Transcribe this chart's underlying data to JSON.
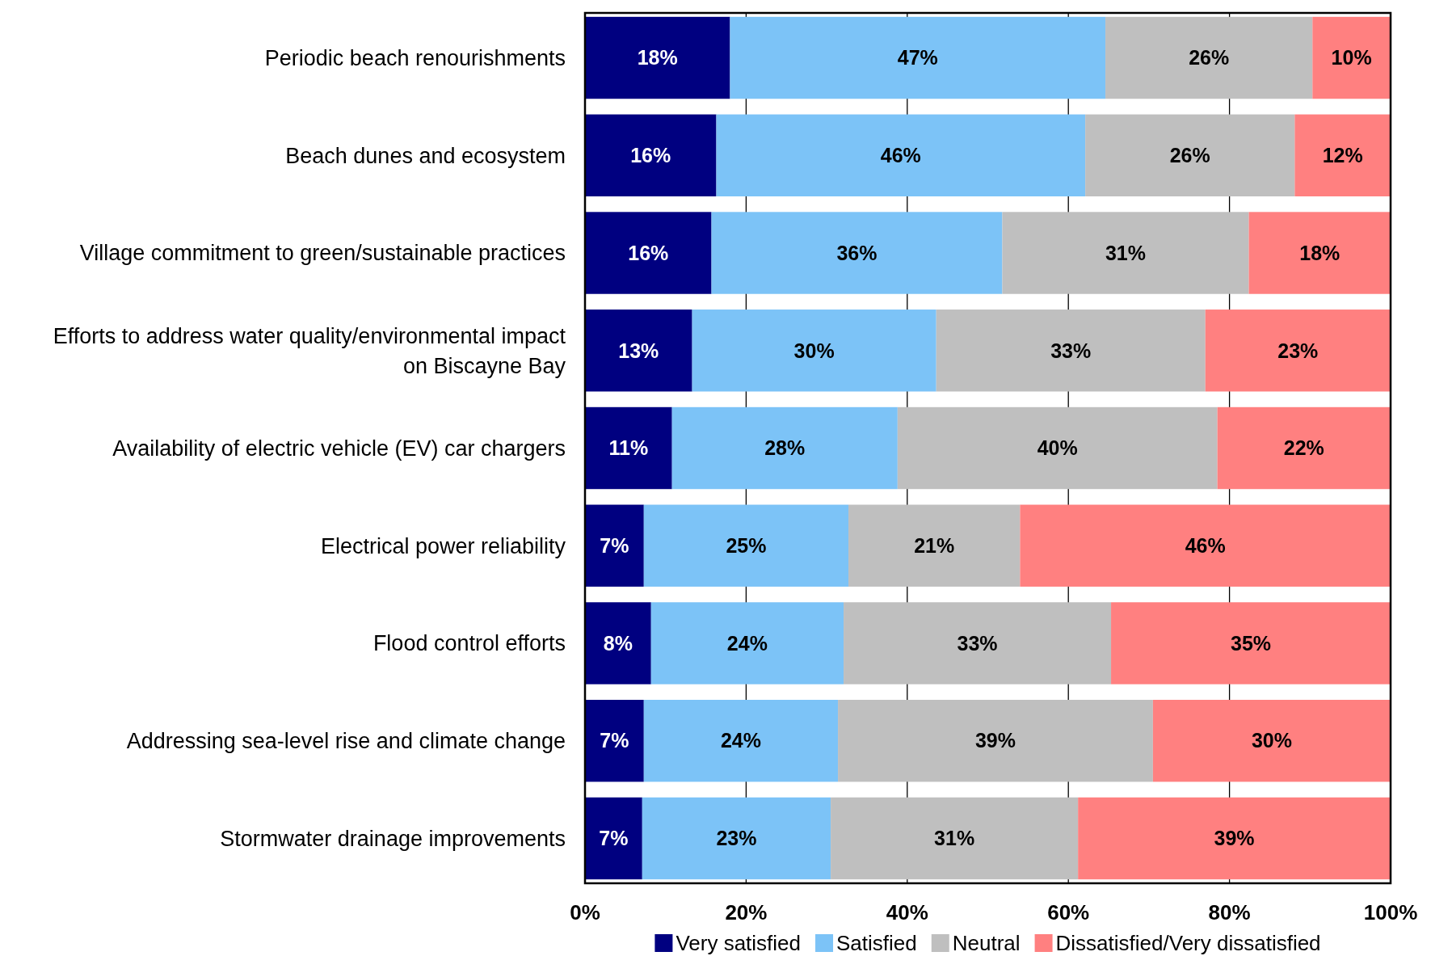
{
  "chart_data": {
    "type": "bar",
    "orientation": "horizontal",
    "stacked": true,
    "categories": [
      "Periodic beach renourishments",
      "Beach dunes and ecosystem",
      "Village commitment to green/sustainable practices",
      "Efforts to address water quality/environmental impact on Biscayne Bay",
      "Availability of electric vehicle (EV) car chargers",
      "Electrical power reliability",
      "Flood control efforts",
      "Addressing sea-level rise and climate change",
      "Stormwater drainage improvements"
    ],
    "series": [
      {
        "name": "Very satisfied",
        "color": "#000080",
        "values": [
          18.0,
          16.3,
          15.7,
          13.3,
          10.8,
          7.3,
          8.2,
          7.3,
          7.1
        ],
        "value_labels": [
          "18%",
          "16%",
          "16%",
          "13%",
          "11%",
          "7%",
          "8%",
          "7%",
          "7%"
        ]
      },
      {
        "name": "Satisfied",
        "color": "#7cc3f7",
        "values": [
          46.6,
          45.8,
          36.1,
          30.3,
          28.0,
          25.4,
          23.9,
          24.1,
          23.4
        ],
        "value_labels": [
          "47%",
          "46%",
          "36%",
          "30%",
          "28%",
          "25%",
          "24%",
          "24%",
          "23%"
        ]
      },
      {
        "name": "Neutral",
        "color": "#bfbfbf",
        "values": [
          25.7,
          26.0,
          30.6,
          33.4,
          39.7,
          21.3,
          33.2,
          39.1,
          30.7
        ],
        "value_labels": [
          "26%",
          "26%",
          "31%",
          "33%",
          "40%",
          "21%",
          "33%",
          "39%",
          "31%"
        ]
      },
      {
        "name": "Dissatisfied/Very dissatisfied",
        "color": "#ff8080",
        "values": [
          9.7,
          11.9,
          17.6,
          23.0,
          21.5,
          46.0,
          34.7,
          29.5,
          38.8
        ],
        "value_labels": [
          "10%",
          "12%",
          "18%",
          "23%",
          "22%",
          "46%",
          "35%",
          "30%",
          "39%"
        ]
      }
    ],
    "xlim": [
      0,
      100
    ],
    "xticks": [
      {
        "value": 0,
        "label": "0%"
      },
      {
        "value": 20,
        "label": "20%"
      },
      {
        "value": 40,
        "label": "40%"
      },
      {
        "value": 60,
        "label": "60%"
      },
      {
        "value": 80,
        "label": "80%"
      },
      {
        "value": 100,
        "label": "100%"
      }
    ],
    "grid": "x",
    "legend": "bottom"
  }
}
